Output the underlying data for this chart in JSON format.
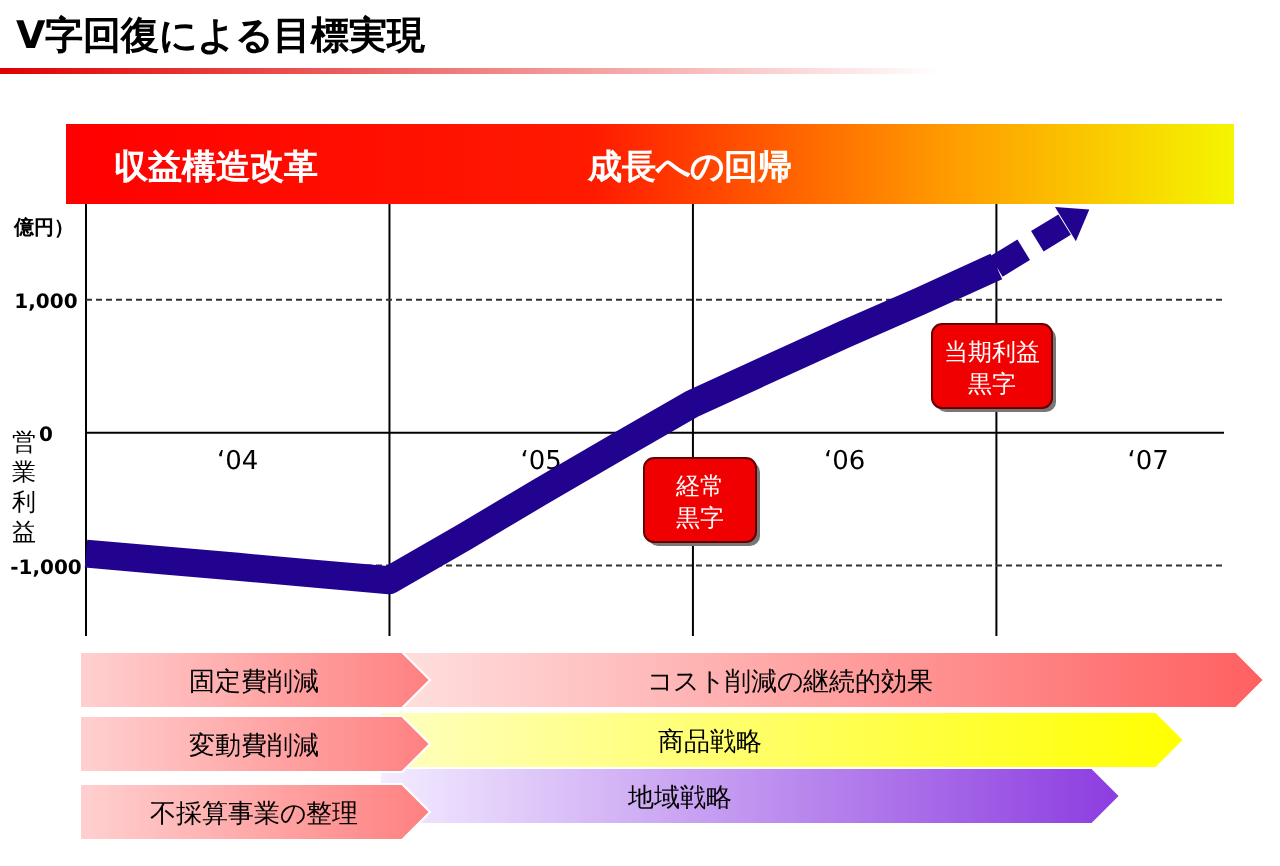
{
  "chart_data": {
    "type": "line",
    "title": "V字回復による目標実現",
    "ylabel": "営業利益",
    "annotations": [
      "億円）",
      "収益構造改革",
      "成長への回帰",
      "経常黒字",
      "当期利益黒字",
      "固定費削減",
      "コスト削減の継続的効果",
      "変動費削減",
      "商品戦略",
      "不採算事業の整理",
      "地域戦略"
    ],
    "categories": [
      null,
      null,
      "‘04",
      null,
      null,
      null,
      "‘05",
      null,
      null,
      null,
      "‘06",
      null,
      null,
      null,
      "‘07",
      null
    ],
    "ylim": [
      -1530,
      1720
    ],
    "yticks": [
      {
        "value": -1000,
        "label": "-1,000"
      },
      0,
      {
        "value": 1000,
        "label": "1,000"
      }
    ],
    "grid": true,
    "series": [
      {
        "color": "#22038f",
        "line_style": "solid",
        "values": [
          -910,
          -960,
          -1010,
          -1060,
          -1110,
          -780,
          -440,
          -110,
          220,
          480,
          740,
          990,
          1250,
          null,
          null,
          null
        ]
      },
      {
        "color": "#22038f",
        "line_style": "dashed",
        "values": [
          null,
          null,
          null,
          null,
          null,
          null,
          null,
          null,
          null,
          null,
          null,
          null,
          1250,
          1600,
          null,
          null
        ]
      }
    ]
  }
}
